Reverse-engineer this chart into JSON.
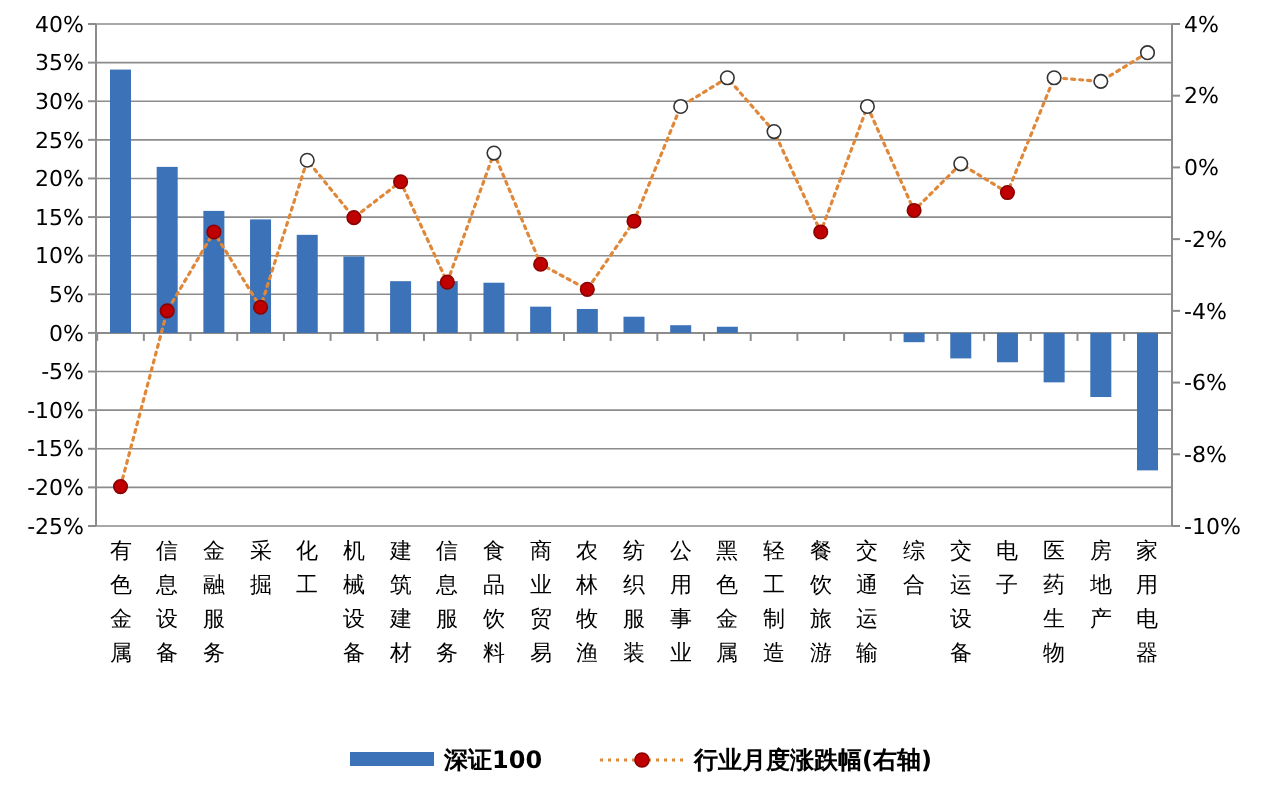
{
  "chart_data": {
    "type": "bar",
    "categories": [
      "有色金属",
      "信息设备",
      "金融服务",
      "采掘",
      "化工",
      "机械设备",
      "建筑建材",
      "信息服务",
      "食品饮料",
      "商业贸易",
      "农林牧渔",
      "纺织服装",
      "公用事业",
      "黑色金属",
      "轻工制造",
      "餐饮旅游",
      "交通运输",
      "综合",
      "交运设备",
      "电子",
      "医药生物",
      "房地产",
      "家用电器"
    ],
    "series": [
      {
        "name": "深证100",
        "color": "#3c72b8",
        "values": [
          34.1,
          21.5,
          15.8,
          14.7,
          12.7,
          9.9,
          6.7,
          6.7,
          6.5,
          3.4,
          3.1,
          2.1,
          1.0,
          0.8,
          0,
          0,
          0,
          -1.2,
          -3.3,
          -3.8,
          -6.4,
          -8.3,
          -17.8
        ]
      },
      {
        "name": "行业月度涨跌幅(右轴)",
        "type": "line",
        "axis": "y2",
        "color": "#e0883a",
        "line_style": "dotted",
        "marker": "circle",
        "values": [
          -8.9,
          -4.0,
          -1.8,
          -3.9,
          0.2,
          -1.4,
          -0.4,
          -3.2,
          0.4,
          -2.7,
          -3.4,
          -1.5,
          1.7,
          2.5,
          1.0,
          -1.8,
          1.7,
          -1.2,
          0.1,
          -0.7,
          2.5,
          2.4,
          3.2
        ],
        "colors": [
          "#c00000",
          "#c00000",
          "#c00000",
          "#c00000",
          "#ffffff",
          "#c00000",
          "#c00000",
          "#c00000",
          "#ffffff",
          "#c00000",
          "#c00000",
          "#c00000",
          "#ffffff",
          "#ffffff",
          "#ffffff",
          "#c00000",
          "#ffffff",
          "#c00000",
          "#ffffff",
          "#c00000",
          "#ffffff",
          "#ffffff",
          "#ffffff"
        ]
      }
    ],
    "ylim": [
      -25,
      40
    ],
    "yticks": [
      {
        "value": -25,
        "label": "-25%"
      },
      {
        "value": -20,
        "label": "-20%"
      },
      {
        "value": -15,
        "label": "-15%"
      },
      {
        "value": -10,
        "label": "-10%"
      },
      {
        "value": -5,
        "label": "-5%"
      },
      {
        "value": 0,
        "label": "0%"
      },
      {
        "value": 5,
        "label": "5%"
      },
      {
        "value": 10,
        "label": "10%"
      },
      {
        "value": 15,
        "label": "15%"
      },
      {
        "value": 20,
        "label": "20%"
      },
      {
        "value": 25,
        "label": "25%"
      },
      {
        "value": 30,
        "label": "30%"
      },
      {
        "value": 35,
        "label": "35%"
      },
      {
        "value": 40,
        "label": "40%"
      }
    ],
    "y2lim": [
      -10,
      4
    ],
    "y2ticks": [
      {
        "value": -10,
        "label": "-10%"
      },
      {
        "value": -8,
        "label": "-8%"
      },
      {
        "value": -6,
        "label": "-6%"
      },
      {
        "value": -4,
        "label": "-4%"
      },
      {
        "value": -2,
        "label": "-2%"
      },
      {
        "value": 0,
        "label": "0%"
      },
      {
        "value": 2,
        "label": "2%"
      },
      {
        "value": 4,
        "label": "4%"
      }
    ],
    "grid": "y",
    "legend": "bottom"
  }
}
